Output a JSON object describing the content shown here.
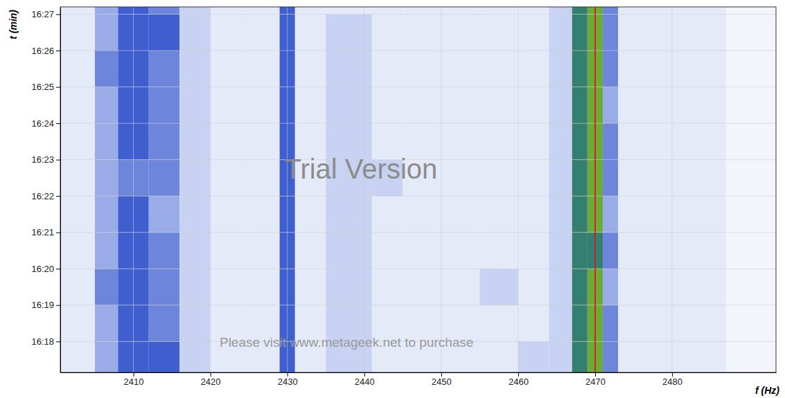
{
  "chart_data": {
    "type": "heatmap",
    "x_label": "f (Hz)",
    "y_label": "t (min)",
    "xlim": [
      2400.5,
      2493.5
    ],
    "xticks": [
      2410,
      2420,
      2430,
      2440,
      2450,
      2460,
      2470,
      2480
    ],
    "ylim": [
      977.15,
      987.2
    ],
    "yticks": [
      {
        "value": 978,
        "label": "16:18"
      },
      {
        "value": 979,
        "label": "16:19"
      },
      {
        "value": 980,
        "label": "16:20"
      },
      {
        "value": 981,
        "label": "16:21"
      },
      {
        "value": 982,
        "label": "16:22"
      },
      {
        "value": 983,
        "label": "16:23"
      },
      {
        "value": 984,
        "label": "16:24"
      },
      {
        "value": 985,
        "label": "16:25"
      },
      {
        "value": 986,
        "label": "16:26"
      },
      {
        "value": 987,
        "label": "16:27"
      }
    ],
    "grid": true,
    "x_bins": [
      2400,
      2405,
      2408,
      2412,
      2416,
      2420,
      2425,
      2429,
      2431,
      2435,
      2441,
      2445,
      2450,
      2455,
      2460,
      2464,
      2467,
      2469,
      2471,
      2473,
      2480,
      2487,
      2494
    ],
    "y_bins": [
      977,
      978,
      979,
      980,
      981,
      982,
      983,
      984,
      985,
      986,
      987,
      988
    ],
    "zlim": [
      0,
      10
    ],
    "cells": [
      [
        2,
        4,
        6,
        6,
        3,
        2,
        2,
        6,
        2,
        3,
        2,
        2,
        2,
        2,
        3,
        3,
        7,
        8,
        5,
        2,
        2,
        1
      ],
      [
        2,
        4,
        6,
        5,
        3,
        2,
        2,
        6,
        2,
        3,
        2,
        2,
        2,
        2,
        2,
        3,
        7,
        8,
        5,
        2,
        2,
        1
      ],
      [
        2,
        5,
        6,
        5,
        3,
        2,
        2,
        6,
        2,
        3,
        2,
        2,
        2,
        3,
        2,
        3,
        7,
        8,
        4,
        2,
        2,
        1
      ],
      [
        2,
        4,
        6,
        5,
        3,
        2,
        2,
        6,
        2,
        3,
        2,
        2,
        2,
        2,
        2,
        3,
        7,
        7,
        5,
        2,
        2,
        1
      ],
      [
        2,
        4,
        6,
        4,
        3,
        2,
        2,
        6,
        2,
        3,
        2,
        2,
        2,
        2,
        2,
        3,
        7,
        8,
        4,
        2,
        2,
        1
      ],
      [
        2,
        4,
        5,
        5,
        3,
        2,
        2,
        6,
        2,
        3,
        3,
        2,
        2,
        2,
        2,
        3,
        7,
        8,
        5,
        2,
        2,
        1
      ],
      [
        2,
        4,
        6,
        5,
        3,
        2,
        2,
        6,
        2,
        3,
        2,
        2,
        2,
        2,
        2,
        3,
        7,
        8,
        5,
        2,
        2,
        1
      ],
      [
        2,
        4,
        6,
        5,
        3,
        2,
        2,
        6,
        2,
        3,
        2,
        2,
        2,
        2,
        2,
        3,
        7,
        8,
        4,
        2,
        2,
        1
      ],
      [
        2,
        5,
        6,
        5,
        3,
        2,
        2,
        6,
        2,
        3,
        2,
        2,
        2,
        2,
        2,
        3,
        7,
        8,
        5,
        2,
        2,
        1
      ],
      [
        2,
        4,
        6,
        6,
        3,
        2,
        2,
        6,
        2,
        3,
        2,
        2,
        2,
        2,
        2,
        3,
        7,
        8,
        5,
        2,
        2,
        1
      ],
      [
        2,
        4,
        6,
        5,
        3,
        2,
        2,
        6,
        2,
        2,
        2,
        2,
        2,
        2,
        2,
        3,
        7,
        8,
        5,
        2,
        2,
        1
      ]
    ],
    "vlines": [
      {
        "x": 2470,
        "color": "#e00000"
      }
    ],
    "annotations": [
      "Trial Version",
      "Please visit www.metageek.net to purchase"
    ]
  }
}
